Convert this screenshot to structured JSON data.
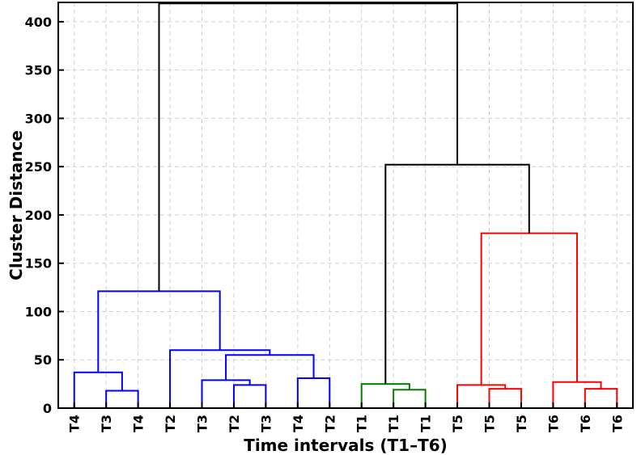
{
  "chart_data": {
    "type": "dendrogram",
    "xlabel": "Time intervals (T1–T6)",
    "ylabel": "Cluster Distance",
    "ylim": [
      0,
      420
    ],
    "yticks": [
      0,
      50,
      100,
      150,
      200,
      250,
      300,
      350,
      400
    ],
    "grid": true,
    "leaves": [
      "T4",
      "T3",
      "T4",
      "T2",
      "T3",
      "T2",
      "T3",
      "T4",
      "T2",
      "T1",
      "T1",
      "T1",
      "T5",
      "T5",
      "T5",
      "T6",
      "T6",
      "T6"
    ],
    "colors": {
      "blue": "#0000ff",
      "green": "#008000",
      "red": "#ff0000",
      "black": "#000000"
    },
    "merges": [
      {
        "a": "L1",
        "b": "L2",
        "height": 18,
        "color": "blue"
      },
      {
        "a": "L0",
        "b": "M0",
        "height": 37,
        "color": "blue"
      },
      {
        "a": "L5",
        "b": "L6",
        "height": 24,
        "color": "blue"
      },
      {
        "a": "L4",
        "b": "M2",
        "height": 29,
        "color": "blue"
      },
      {
        "a": "L7",
        "b": "L8",
        "height": 31,
        "color": "blue"
      },
      {
        "a": "M3",
        "b": "M4",
        "height": 55,
        "color": "blue"
      },
      {
        "a": "L3",
        "b": "M5",
        "height": 60,
        "color": "blue"
      },
      {
        "a": "M1",
        "b": "M6",
        "height": 121,
        "color": "blue"
      },
      {
        "a": "L10",
        "b": "L11",
        "height": 19,
        "color": "green"
      },
      {
        "a": "L9",
        "b": "M8",
        "height": 25,
        "color": "green"
      },
      {
        "a": "L13",
        "b": "L14",
        "height": 20,
        "color": "red"
      },
      {
        "a": "L12",
        "b": "M10",
        "height": 24,
        "color": "red"
      },
      {
        "a": "L16",
        "b": "L17",
        "height": 20,
        "color": "red"
      },
      {
        "a": "L15",
        "b": "M12",
        "height": 27,
        "color": "red"
      },
      {
        "a": "M11",
        "b": "M13",
        "height": 181,
        "color": "red"
      },
      {
        "a": "M9",
        "b": "M14",
        "height": 252,
        "color": "black"
      },
      {
        "a": "M7",
        "b": "M15",
        "height": 419,
        "color": "black"
      }
    ]
  }
}
